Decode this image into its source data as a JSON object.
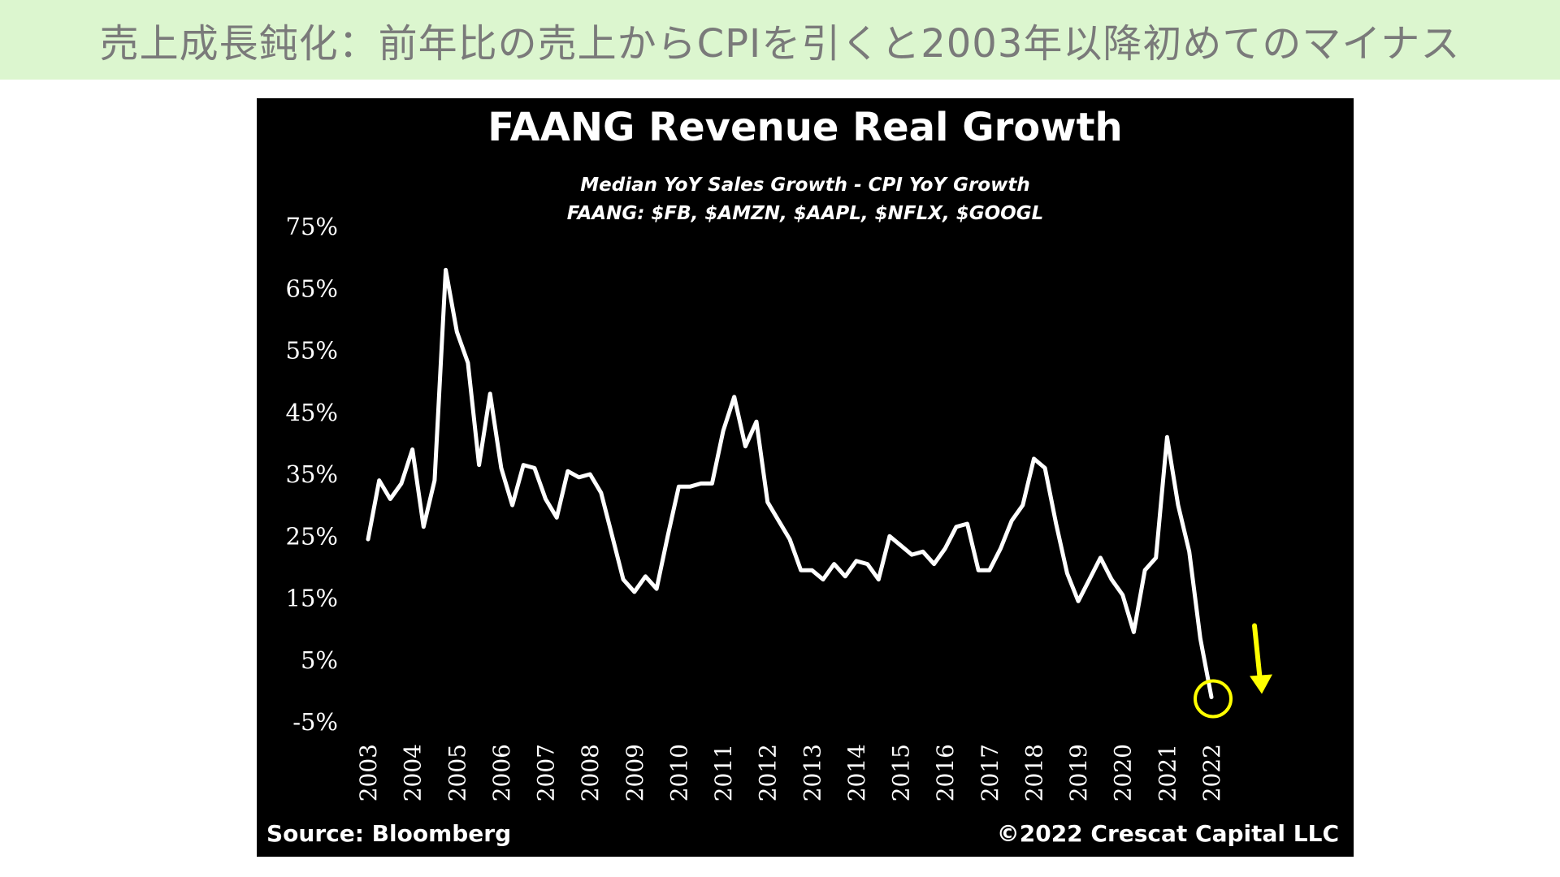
{
  "banner": {
    "text": "売上成長鈍化：前年比の売上からCPIを引くと2003年以降初めてのマイナス",
    "bg_color": "#dcf6cf",
    "text_color": "#7a7a7a"
  },
  "chart_data": {
    "type": "line",
    "title": "FAANG Revenue Real Growth",
    "subtitle_lines": [
      "Median YoY Sales Growth - CPI YoY Growth",
      "FAANG: $FB, $AMZN, $AAPL, $NFLX, $GOOGL"
    ],
    "xlabel": "",
    "ylabel": "",
    "ylim": [
      -5,
      75
    ],
    "yticks": [
      75,
      65,
      55,
      45,
      35,
      25,
      15,
      5,
      -5
    ],
    "ytick_labels": [
      "75%",
      "65%",
      "55%",
      "45%",
      "35%",
      "25%",
      "15%",
      "5%",
      "-5%"
    ],
    "xlim": [
      2003,
      2022
    ],
    "xticks": [
      2003,
      2004,
      2005,
      2006,
      2007,
      2008,
      2009,
      2010,
      2011,
      2012,
      2013,
      2014,
      2015,
      2016,
      2017,
      2018,
      2019,
      2020,
      2021,
      2022
    ],
    "xtick_labels": [
      "2003",
      "2004",
      "2005",
      "2006",
      "2007",
      "2008",
      "2009",
      "2010",
      "2011",
      "2012",
      "2013",
      "2014",
      "2015",
      "2016",
      "2017",
      "2018",
      "2019",
      "2020",
      "2021",
      "2022"
    ],
    "grid": false,
    "line_color": "#ffffff",
    "background": "#000000",
    "series": [
      {
        "x": [
          2003.0,
          2003.25,
          2003.5,
          2003.75,
          2004.0,
          2004.25,
          2004.5,
          2004.75,
          2005.0,
          2005.25,
          2005.5,
          2005.75,
          2006.0,
          2006.25,
          2006.5,
          2006.75,
          2007.0,
          2007.25,
          2007.5,
          2007.75,
          2008.0,
          2008.25,
          2008.5,
          2008.75,
          2009.0,
          2009.25,
          2009.5,
          2009.75,
          2010.0,
          2010.25,
          2010.5,
          2010.75,
          2011.0,
          2011.25,
          2011.5,
          2011.75,
          2012.0,
          2012.25,
          2012.5,
          2012.75,
          2013.0,
          2013.25,
          2013.5,
          2013.75,
          2014.0,
          2014.25,
          2014.5,
          2014.75,
          2015.0,
          2015.25,
          2015.5,
          2015.75,
          2016.0,
          2016.25,
          2016.5,
          2016.75,
          2017.0,
          2017.25,
          2017.5,
          2017.75,
          2018.0,
          2018.25,
          2018.5,
          2018.75,
          2019.0,
          2019.25,
          2019.5,
          2019.75,
          2020.0,
          2020.25,
          2020.5,
          2020.75,
          2021.0,
          2021.25,
          2021.5,
          2021.75,
          2022.0
        ],
        "values": [
          24.5,
          34,
          31,
          33.5,
          39,
          26.5,
          34,
          68,
          58,
          53,
          36.5,
          48,
          36,
          30,
          36.5,
          36,
          31,
          28,
          35.5,
          34.5,
          35,
          32,
          25,
          18,
          16,
          18.5,
          16.5,
          25,
          33,
          33,
          33.5,
          33.5,
          42,
          47.5,
          39.5,
          43.5,
          30.5,
          27.5,
          24.5,
          19.5,
          19.5,
          18,
          20.5,
          18.5,
          21,
          20.5,
          18,
          25,
          23.5,
          22,
          22.5,
          20.5,
          23,
          26.5,
          27,
          19.5,
          19.5,
          23,
          27.5,
          30,
          37.5,
          36,
          27,
          19,
          14.5,
          18,
          21.5,
          18,
          15.5,
          9.5,
          19.5,
          21.5,
          41,
          30,
          22.5,
          8.5,
          -1
        ]
      }
    ],
    "highlight_point": {
      "x": 2022.0,
      "value": -1
    },
    "annotation_color": "#ffff00",
    "annotation_arrow": "down",
    "source_note": "Source: Bloomberg",
    "copyright_note": "©2022 Crescat Capital LLC"
  }
}
